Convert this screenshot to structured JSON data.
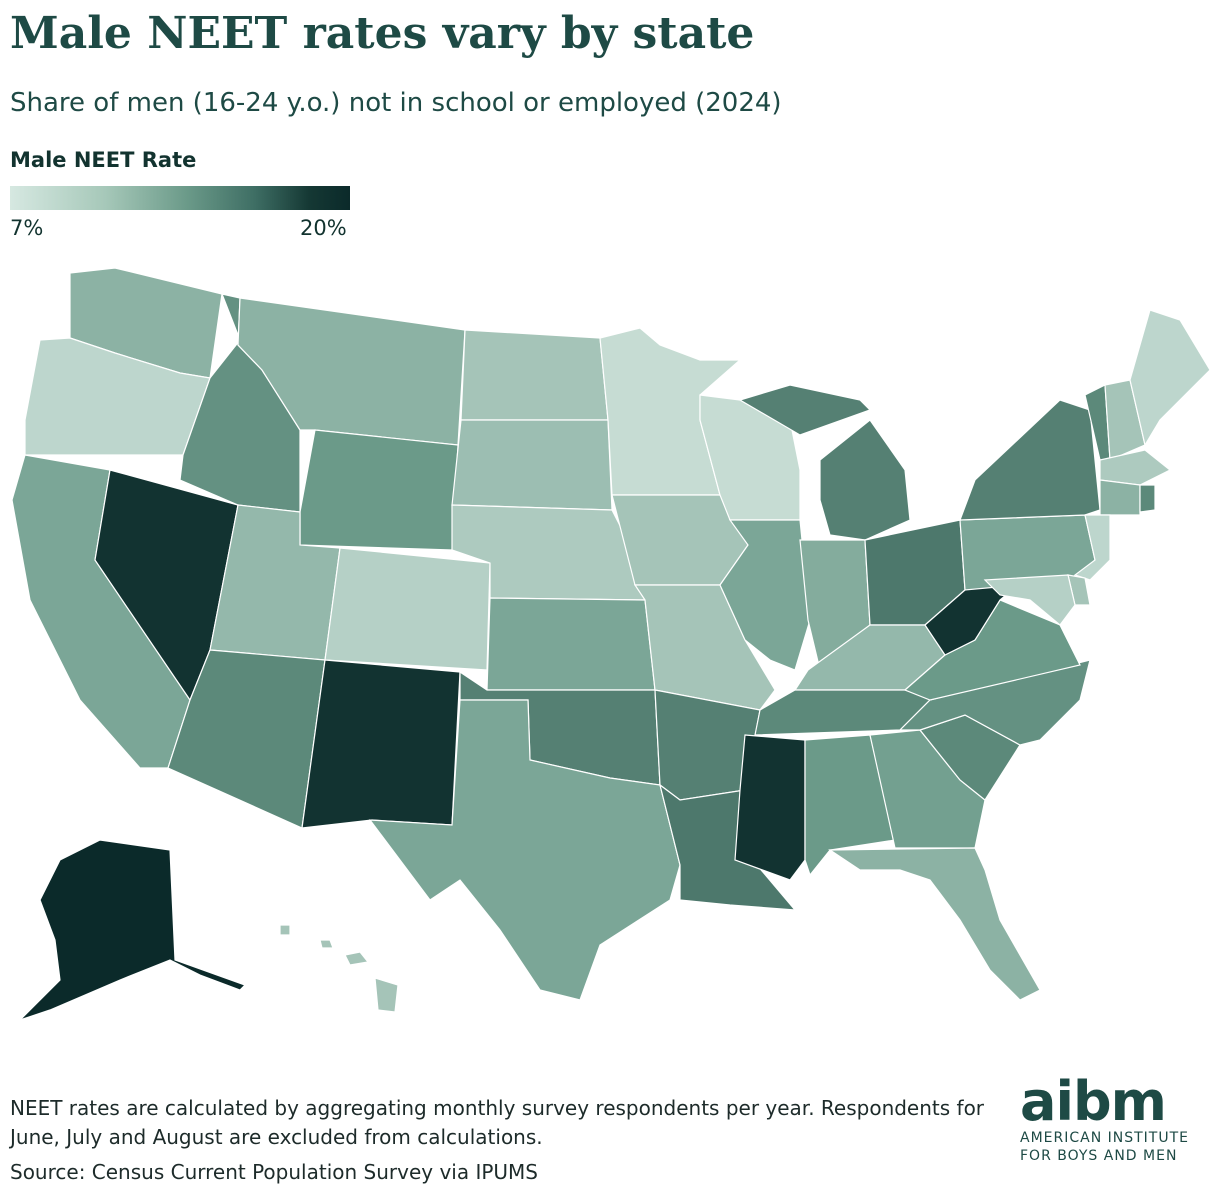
{
  "title": "Male NEET rates vary by state",
  "subtitle": "Share of men (16-24 y.o.) not in school or employed (2024)",
  "legend": {
    "title": "Male NEET Rate",
    "min_label": "7%",
    "max_label": "20%",
    "min": 7,
    "max": 20
  },
  "note": "NEET rates are calculated by aggregating monthly survey respondents per year. Respondents for June, July and August are excluded from calculations.",
  "source": "Source: Census Current Population Survey via IPUMS",
  "logo": {
    "mark": "aibm",
    "line1": "AMERICAN INSTITUTE",
    "line2": "FOR BOYS AND MEN"
  },
  "colors": {
    "title": "#1e4a45",
    "low": "#d6e8e1",
    "high": "#0b2a2a"
  },
  "chart_data": {
    "type": "choropleth",
    "metric": "Male NEET Rate",
    "unit": "%",
    "range": [
      7,
      20
    ],
    "states": [
      {
        "code": "WA",
        "value": 11.5
      },
      {
        "code": "OR",
        "value": 8.5
      },
      {
        "code": "CA",
        "value": 12.5
      },
      {
        "code": "NV",
        "value": 19.5
      },
      {
        "code": "ID",
        "value": 14.0
      },
      {
        "code": "MT",
        "value": 11.5
      },
      {
        "code": "WY",
        "value": 13.5
      },
      {
        "code": "UT",
        "value": 11.0
      },
      {
        "code": "CO",
        "value": 9.0
      },
      {
        "code": "AZ",
        "value": 14.5
      },
      {
        "code": "NM",
        "value": 19.5
      },
      {
        "code": "ND",
        "value": 10.0
      },
      {
        "code": "SD",
        "value": 10.5
      },
      {
        "code": "NE",
        "value": 9.5
      },
      {
        "code": "KS",
        "value": 12.5
      },
      {
        "code": "OK",
        "value": 15.0
      },
      {
        "code": "TX",
        "value": 12.5
      },
      {
        "code": "MN",
        "value": 8.0
      },
      {
        "code": "IA",
        "value": 10.0
      },
      {
        "code": "MO",
        "value": 10.0
      },
      {
        "code": "AR",
        "value": 15.0
      },
      {
        "code": "LA",
        "value": 15.5
      },
      {
        "code": "WI",
        "value": 8.0
      },
      {
        "code": "IL",
        "value": 12.5
      },
      {
        "code": "MI",
        "value": 15.0
      },
      {
        "code": "IN",
        "value": 12.0
      },
      {
        "code": "OH",
        "value": 15.5
      },
      {
        "code": "KY",
        "value": 11.0
      },
      {
        "code": "TN",
        "value": 14.5
      },
      {
        "code": "MS",
        "value": 19.5
      },
      {
        "code": "AL",
        "value": 13.5
      },
      {
        "code": "GA",
        "value": 13.0
      },
      {
        "code": "FL",
        "value": 11.5
      },
      {
        "code": "SC",
        "value": 14.5
      },
      {
        "code": "NC",
        "value": 14.0
      },
      {
        "code": "VA",
        "value": 13.5
      },
      {
        "code": "WV",
        "value": 19.5
      },
      {
        "code": "PA",
        "value": 12.5
      },
      {
        "code": "NY",
        "value": 15.0
      },
      {
        "code": "VT",
        "value": 14.5
      },
      {
        "code": "NH",
        "value": 10.0
      },
      {
        "code": "ME",
        "value": 8.5
      },
      {
        "code": "MA",
        "value": 9.5
      },
      {
        "code": "CT",
        "value": 11.5
      },
      {
        "code": "RI",
        "value": 14.5
      },
      {
        "code": "NJ",
        "value": 8.5
      },
      {
        "code": "DE",
        "value": 10.0
      },
      {
        "code": "MD",
        "value": 9.0
      },
      {
        "code": "AK",
        "value": 20.0
      },
      {
        "code": "HI",
        "value": 10.0
      }
    ]
  }
}
